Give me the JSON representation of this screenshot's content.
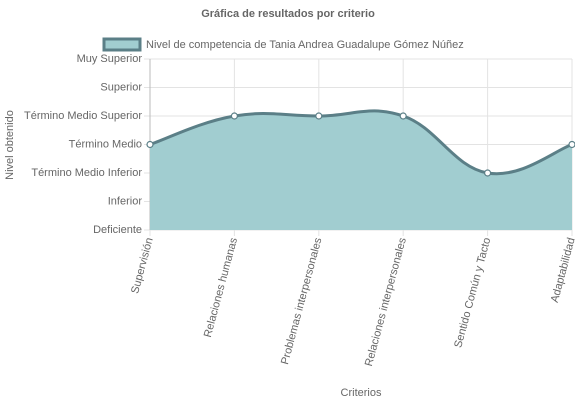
{
  "chart_data": {
    "type": "line",
    "title": "Gráfica de resultados por criterio",
    "x_label": "Criterios",
    "y_label": "Nivel obtenido",
    "categories": [
      "Supervisión",
      "Relaciones humanas",
      "Problemas interpersonales",
      "Relaciones interpersonales",
      "Sentido Común y Tacto",
      "Adaptabilidad"
    ],
    "series": [
      {
        "name": "Nivel de competencia de Tania Andrea Guadalupe Gómez Núñez",
        "color": "#5b7f87",
        "fill": "#a1cdd0",
        "values": [
          3,
          4,
          4,
          4,
          2,
          3
        ]
      }
    ],
    "ylim": [
      0,
      6
    ],
    "yticks": [
      {
        "value": 0,
        "label": "Deficiente"
      },
      {
        "value": 1,
        "label": "Inferior"
      },
      {
        "value": 2,
        "label": "Término Medio Inferior"
      },
      {
        "value": 3,
        "label": "Término Medio"
      },
      {
        "value": 4,
        "label": "Término Medio Superior"
      },
      {
        "value": 5,
        "label": "Superior"
      },
      {
        "value": 6,
        "label": "Muy Superior"
      }
    ],
    "grid": true,
    "filled": true
  }
}
